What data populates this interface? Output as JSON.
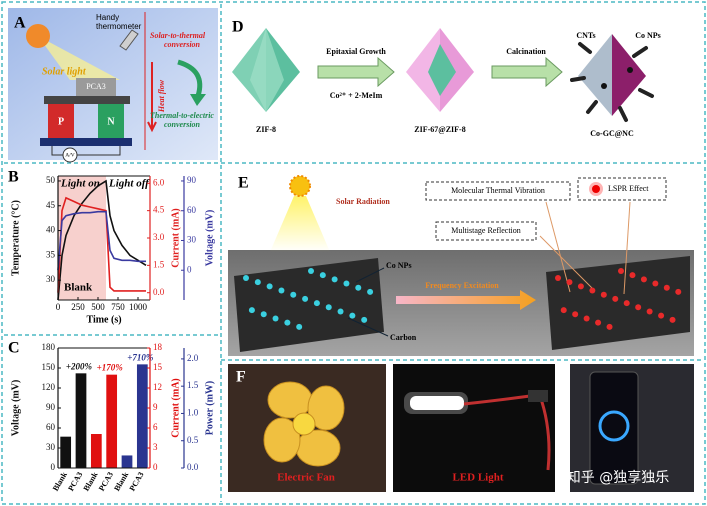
{
  "panel_a": {
    "label": "A",
    "solar_light": "Solar light",
    "thermometer": [
      "Handy",
      "thermometer"
    ],
    "solar_to_thermal": [
      "Solar-to-thermal",
      "conversion"
    ],
    "heat_flow": "Heat flow",
    "thermal_to_electric": [
      "Thermal-to-electric",
      "conversion"
    ],
    "device": "PCA3",
    "p_leg": "P",
    "n_leg": "N",
    "meter": "A/V"
  },
  "panel_d": {
    "label": "D",
    "step1": "Epitaxial Growth",
    "reagents": "Co²⁺ + 2-MeIm",
    "step2": "Calcination",
    "materials": [
      "ZIF-8",
      "ZIF-67@ZIF-8",
      "Co-GC@NC"
    ],
    "cnts": "CNTs",
    "co_nps": "Co NPs"
  },
  "panel_e": {
    "label": "E",
    "solar": "Solar Radiation",
    "co_nps": "Co NPs",
    "carbon": "Carbon",
    "excitation": "Frequency Excitation",
    "vibration": "Molecular Thermal Vibration",
    "reflection": "Multistage Reflection",
    "lspr": "LSPR Effect"
  },
  "panel_f": {
    "label": "F",
    "photos": [
      "Electric Fan",
      "LED Light"
    ]
  },
  "watermark": "知乎 @独享独乐",
  "chart_data": [
    {
      "type": "line",
      "panel_label": "B",
      "xlabel": "Time (s)",
      "ylabel": "Temperature (°C)",
      "y2label": "Current (mA)",
      "y3label": "Voltage (mV)",
      "annotations": [
        "Light on",
        "Light off",
        "Blank"
      ],
      "x": [
        0,
        50,
        100,
        200,
        300,
        400,
        500,
        600,
        650,
        700,
        800,
        900,
        1000,
        1100
      ],
      "xlim": [
        0,
        1150
      ],
      "xticks": [
        0,
        250,
        500,
        750,
        1000
      ],
      "ylim": [
        26,
        51
      ],
      "yticks": [
        30,
        35,
        40,
        45,
        50
      ],
      "y2lim": [
        -0.4,
        6.4
      ],
      "y2ticks": [
        {
          "value": 0,
          "label": "0.0"
        },
        1.5,
        {
          "value": 3,
          "label": "3.0"
        },
        4.5,
        {
          "value": 6,
          "label": "6.0"
        }
      ],
      "y3lim": [
        -30,
        95
      ],
      "y3ticks": [
        0,
        30,
        60,
        90
      ],
      "series": [
        {
          "color": "#111111",
          "axis": "y",
          "values": [
            26,
            35,
            39,
            43,
            45.5,
            47.5,
            49,
            50,
            43,
            40,
            37,
            35,
            34,
            33
          ]
        },
        {
          "color": "#e02020",
          "axis": "y2",
          "values": [
            0,
            4.5,
            5.2,
            5.0,
            4.8,
            4.7,
            4.6,
            4.5,
            0.3,
            0.1,
            0.1,
            0.1,
            0.1,
            0.1
          ]
        },
        {
          "color": "#3a3aa0",
          "axis": "y3",
          "values": [
            0,
            50,
            55,
            57,
            58,
            58,
            59,
            59,
            20,
            12,
            10,
            10,
            9,
            9
          ]
        }
      ]
    },
    {
      "type": "bar",
      "panel_label": "C",
      "categories": [
        "Blank",
        "PCA3"
      ],
      "annotations": [
        "+200%",
        "+170%",
        "+710%"
      ],
      "ylabel": "Voltage (mV)",
      "y2label": "Current (mA)",
      "y3label": "Power (mW)",
      "ylim": [
        0,
        180
      ],
      "yticks": [
        0,
        30,
        60,
        90,
        120,
        150,
        180
      ],
      "y2lim": [
        0,
        18
      ],
      "y2ticks": [
        0,
        3,
        6,
        9,
        12,
        15,
        18
      ],
      "y3lim": [
        0,
        2.2
      ],
      "y3ticks": [
        {
          "value": 0,
          "label": "0.0"
        },
        0.5,
        {
          "value": 1,
          "label": "1.0"
        },
        1.5,
        {
          "value": 2,
          "label": "2.0"
        }
      ],
      "series": [
        {
          "color": "#111111",
          "axis": "y",
          "values": [
            47,
            142
          ]
        },
        {
          "color": "#e01010",
          "axis": "y2",
          "values": [
            5.1,
            14
          ]
        },
        {
          "color": "#2a3590",
          "axis": "y3",
          "values": [
            0.23,
            1.9
          ]
        }
      ]
    }
  ]
}
